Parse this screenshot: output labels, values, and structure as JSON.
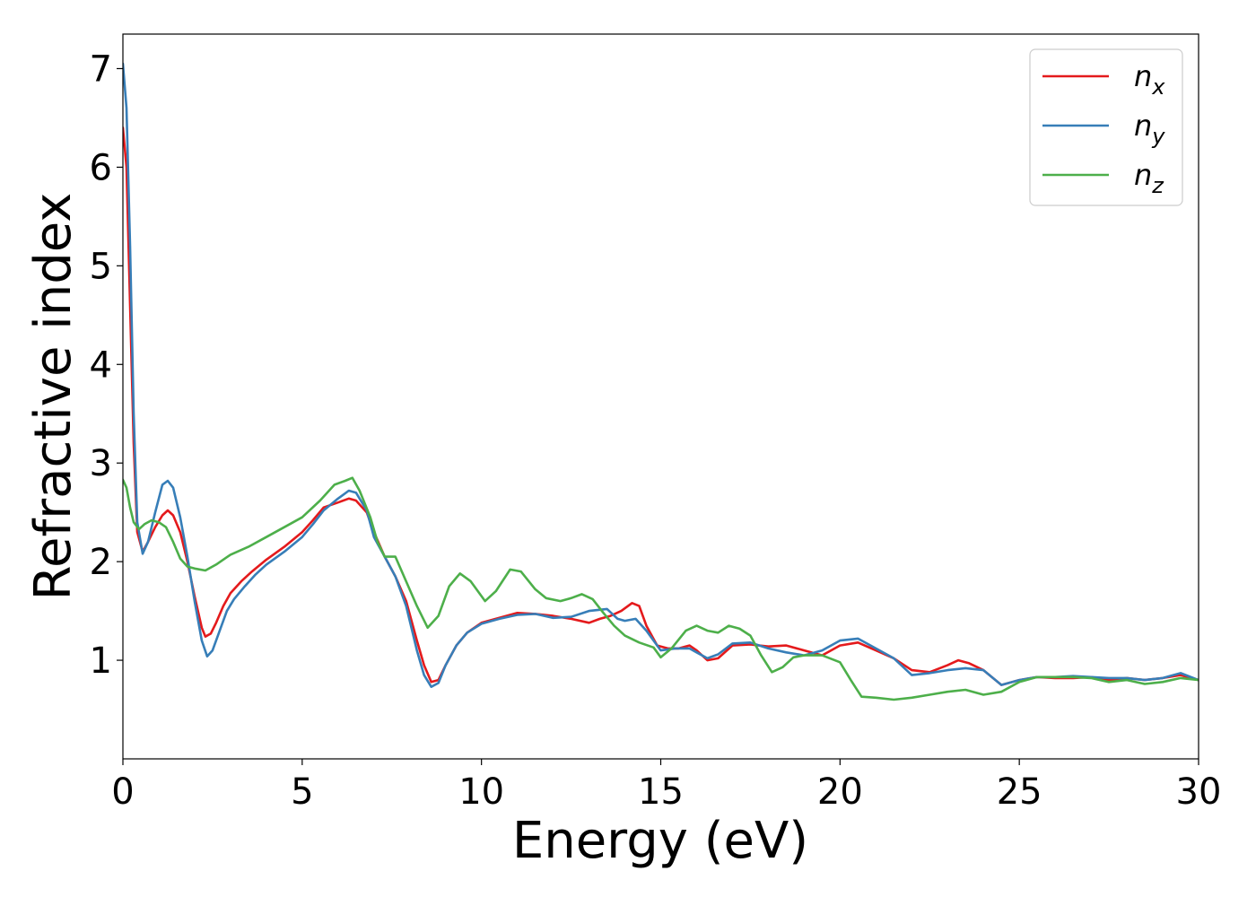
{
  "chart_data": {
    "type": "line",
    "title": "",
    "xlabel": "Energy (eV)",
    "ylabel": "Refractive index",
    "xlim": [
      0,
      30
    ],
    "ylim": [
      0,
      7.35
    ],
    "xticks": [
      0,
      5,
      10,
      15,
      20,
      25,
      30
    ],
    "yticks": [
      1,
      2,
      3,
      4,
      5,
      6,
      7
    ],
    "grid": false,
    "legend_position": "top-right",
    "series": [
      {
        "name": "n",
        "subscript": "x",
        "color": "#e41a1c",
        "points": [
          [
            0,
            6.4
          ],
          [
            0.1,
            6.0
          ],
          [
            0.2,
            4.6
          ],
          [
            0.3,
            3.2
          ],
          [
            0.4,
            2.3
          ],
          [
            0.55,
            2.1
          ],
          [
            0.7,
            2.2
          ],
          [
            0.9,
            2.35
          ],
          [
            1.1,
            2.47
          ],
          [
            1.25,
            2.52
          ],
          [
            1.4,
            2.47
          ],
          [
            1.6,
            2.3
          ],
          [
            1.8,
            2.0
          ],
          [
            2.0,
            1.65
          ],
          [
            2.2,
            1.33
          ],
          [
            2.3,
            1.24
          ],
          [
            2.45,
            1.27
          ],
          [
            2.6,
            1.38
          ],
          [
            2.8,
            1.55
          ],
          [
            3.0,
            1.68
          ],
          [
            3.3,
            1.8
          ],
          [
            3.6,
            1.9
          ],
          [
            4.0,
            2.02
          ],
          [
            4.5,
            2.15
          ],
          [
            5.0,
            2.3
          ],
          [
            5.3,
            2.42
          ],
          [
            5.6,
            2.55
          ],
          [
            6.0,
            2.6
          ],
          [
            6.3,
            2.64
          ],
          [
            6.5,
            2.62
          ],
          [
            6.8,
            2.5
          ],
          [
            7.0,
            2.3
          ],
          [
            7.3,
            2.05
          ],
          [
            7.6,
            1.85
          ],
          [
            7.9,
            1.6
          ],
          [
            8.2,
            1.2
          ],
          [
            8.4,
            0.95
          ],
          [
            8.6,
            0.78
          ],
          [
            8.8,
            0.8
          ],
          [
            9.0,
            0.95
          ],
          [
            9.3,
            1.15
          ],
          [
            9.6,
            1.28
          ],
          [
            10.0,
            1.38
          ],
          [
            10.5,
            1.43
          ],
          [
            11.0,
            1.48
          ],
          [
            11.5,
            1.47
          ],
          [
            12.0,
            1.45
          ],
          [
            12.5,
            1.42
          ],
          [
            13.0,
            1.38
          ],
          [
            13.3,
            1.42
          ],
          [
            13.6,
            1.45
          ],
          [
            13.9,
            1.5
          ],
          [
            14.2,
            1.58
          ],
          [
            14.4,
            1.55
          ],
          [
            14.6,
            1.35
          ],
          [
            14.9,
            1.15
          ],
          [
            15.2,
            1.12
          ],
          [
            15.5,
            1.12
          ],
          [
            15.8,
            1.15
          ],
          [
            16.0,
            1.1
          ],
          [
            16.3,
            1.0
          ],
          [
            16.6,
            1.02
          ],
          [
            17.0,
            1.15
          ],
          [
            17.5,
            1.16
          ],
          [
            18.0,
            1.14
          ],
          [
            18.5,
            1.15
          ],
          [
            19.0,
            1.1
          ],
          [
            19.5,
            1.05
          ],
          [
            20.0,
            1.15
          ],
          [
            20.5,
            1.18
          ],
          [
            21.0,
            1.1
          ],
          [
            21.5,
            1.02
          ],
          [
            22.0,
            0.9
          ],
          [
            22.5,
            0.88
          ],
          [
            23.0,
            0.95
          ],
          [
            23.3,
            1.0
          ],
          [
            23.6,
            0.97
          ],
          [
            24.0,
            0.9
          ],
          [
            24.5,
            0.75
          ],
          [
            25.0,
            0.8
          ],
          [
            25.5,
            0.83
          ],
          [
            26.0,
            0.82
          ],
          [
            26.5,
            0.82
          ],
          [
            27.0,
            0.83
          ],
          [
            27.5,
            0.8
          ],
          [
            28.0,
            0.82
          ],
          [
            28.5,
            0.8
          ],
          [
            29.0,
            0.82
          ],
          [
            29.5,
            0.85
          ],
          [
            30.0,
            0.8
          ]
        ]
      },
      {
        "name": "n",
        "subscript": "y",
        "color": "#377eb8",
        "points": [
          [
            0,
            7.05
          ],
          [
            0.1,
            6.6
          ],
          [
            0.2,
            5.2
          ],
          [
            0.3,
            3.5
          ],
          [
            0.4,
            2.4
          ],
          [
            0.55,
            2.08
          ],
          [
            0.7,
            2.2
          ],
          [
            0.9,
            2.5
          ],
          [
            1.1,
            2.78
          ],
          [
            1.25,
            2.82
          ],
          [
            1.4,
            2.75
          ],
          [
            1.6,
            2.45
          ],
          [
            1.8,
            2.05
          ],
          [
            2.0,
            1.6
          ],
          [
            2.2,
            1.2
          ],
          [
            2.35,
            1.04
          ],
          [
            2.5,
            1.1
          ],
          [
            2.7,
            1.3
          ],
          [
            2.9,
            1.5
          ],
          [
            3.1,
            1.62
          ],
          [
            3.4,
            1.75
          ],
          [
            3.7,
            1.87
          ],
          [
            4.0,
            1.97
          ],
          [
            4.5,
            2.1
          ],
          [
            5.0,
            2.25
          ],
          [
            5.3,
            2.38
          ],
          [
            5.6,
            2.52
          ],
          [
            6.0,
            2.64
          ],
          [
            6.3,
            2.72
          ],
          [
            6.5,
            2.7
          ],
          [
            6.8,
            2.52
          ],
          [
            7.0,
            2.25
          ],
          [
            7.3,
            2.05
          ],
          [
            7.6,
            1.85
          ],
          [
            7.9,
            1.55
          ],
          [
            8.2,
            1.1
          ],
          [
            8.4,
            0.85
          ],
          [
            8.6,
            0.73
          ],
          [
            8.8,
            0.77
          ],
          [
            9.0,
            0.95
          ],
          [
            9.3,
            1.15
          ],
          [
            9.6,
            1.28
          ],
          [
            10.0,
            1.37
          ],
          [
            10.5,
            1.42
          ],
          [
            11.0,
            1.46
          ],
          [
            11.5,
            1.47
          ],
          [
            12.0,
            1.43
          ],
          [
            12.5,
            1.44
          ],
          [
            13.0,
            1.5
          ],
          [
            13.5,
            1.52
          ],
          [
            13.8,
            1.42
          ],
          [
            14.0,
            1.4
          ],
          [
            14.3,
            1.42
          ],
          [
            14.6,
            1.3
          ],
          [
            15.0,
            1.1
          ],
          [
            15.4,
            1.12
          ],
          [
            15.8,
            1.12
          ],
          [
            16.0,
            1.08
          ],
          [
            16.3,
            1.02
          ],
          [
            16.6,
            1.06
          ],
          [
            17.0,
            1.17
          ],
          [
            17.5,
            1.18
          ],
          [
            18.0,
            1.12
          ],
          [
            18.5,
            1.08
          ],
          [
            19.0,
            1.05
          ],
          [
            19.5,
            1.1
          ],
          [
            20.0,
            1.2
          ],
          [
            20.5,
            1.22
          ],
          [
            21.0,
            1.12
          ],
          [
            21.5,
            1.02
          ],
          [
            22.0,
            0.85
          ],
          [
            22.5,
            0.87
          ],
          [
            23.0,
            0.9
          ],
          [
            23.5,
            0.92
          ],
          [
            24.0,
            0.9
          ],
          [
            24.5,
            0.75
          ],
          [
            25.0,
            0.8
          ],
          [
            25.5,
            0.83
          ],
          [
            26.0,
            0.83
          ],
          [
            26.5,
            0.84
          ],
          [
            27.0,
            0.83
          ],
          [
            27.5,
            0.82
          ],
          [
            28.0,
            0.82
          ],
          [
            28.5,
            0.8
          ],
          [
            29.0,
            0.82
          ],
          [
            29.5,
            0.87
          ],
          [
            30.0,
            0.8
          ]
        ]
      },
      {
        "name": "n",
        "subscript": "z",
        "color": "#4daf4a",
        "points": [
          [
            0,
            2.83
          ],
          [
            0.1,
            2.75
          ],
          [
            0.2,
            2.55
          ],
          [
            0.3,
            2.4
          ],
          [
            0.45,
            2.33
          ],
          [
            0.6,
            2.38
          ],
          [
            0.8,
            2.42
          ],
          [
            1.0,
            2.4
          ],
          [
            1.2,
            2.35
          ],
          [
            1.4,
            2.2
          ],
          [
            1.6,
            2.03
          ],
          [
            1.8,
            1.95
          ],
          [
            2.0,
            1.93
          ],
          [
            2.3,
            1.91
          ],
          [
            2.6,
            1.97
          ],
          [
            3.0,
            2.07
          ],
          [
            3.5,
            2.15
          ],
          [
            4.0,
            2.25
          ],
          [
            4.5,
            2.35
          ],
          [
            5.0,
            2.45
          ],
          [
            5.5,
            2.62
          ],
          [
            5.9,
            2.78
          ],
          [
            6.2,
            2.82
          ],
          [
            6.4,
            2.85
          ],
          [
            6.6,
            2.72
          ],
          [
            6.9,
            2.45
          ],
          [
            7.1,
            2.2
          ],
          [
            7.3,
            2.05
          ],
          [
            7.6,
            2.05
          ],
          [
            7.9,
            1.8
          ],
          [
            8.2,
            1.55
          ],
          [
            8.5,
            1.33
          ],
          [
            8.8,
            1.45
          ],
          [
            9.1,
            1.75
          ],
          [
            9.4,
            1.88
          ],
          [
            9.7,
            1.8
          ],
          [
            10.1,
            1.6
          ],
          [
            10.4,
            1.7
          ],
          [
            10.8,
            1.92
          ],
          [
            11.1,
            1.9
          ],
          [
            11.5,
            1.72
          ],
          [
            11.8,
            1.63
          ],
          [
            12.2,
            1.6
          ],
          [
            12.5,
            1.63
          ],
          [
            12.8,
            1.67
          ],
          [
            13.1,
            1.62
          ],
          [
            13.4,
            1.48
          ],
          [
            13.7,
            1.35
          ],
          [
            14.0,
            1.25
          ],
          [
            14.4,
            1.18
          ],
          [
            14.8,
            1.13
          ],
          [
            15.0,
            1.03
          ],
          [
            15.3,
            1.12
          ],
          [
            15.7,
            1.3
          ],
          [
            16.0,
            1.35
          ],
          [
            16.3,
            1.3
          ],
          [
            16.6,
            1.28
          ],
          [
            16.9,
            1.35
          ],
          [
            17.2,
            1.32
          ],
          [
            17.5,
            1.25
          ],
          [
            17.8,
            1.05
          ],
          [
            18.1,
            0.88
          ],
          [
            18.4,
            0.93
          ],
          [
            18.7,
            1.03
          ],
          [
            19.0,
            1.05
          ],
          [
            19.5,
            1.05
          ],
          [
            20.0,
            0.98
          ],
          [
            20.3,
            0.8
          ],
          [
            20.6,
            0.63
          ],
          [
            21.0,
            0.62
          ],
          [
            21.5,
            0.6
          ],
          [
            22.0,
            0.62
          ],
          [
            22.5,
            0.65
          ],
          [
            23.0,
            0.68
          ],
          [
            23.5,
            0.7
          ],
          [
            24.0,
            0.65
          ],
          [
            24.5,
            0.68
          ],
          [
            25.0,
            0.78
          ],
          [
            25.5,
            0.83
          ],
          [
            26.0,
            0.83
          ],
          [
            26.5,
            0.83
          ],
          [
            27.0,
            0.82
          ],
          [
            27.5,
            0.78
          ],
          [
            28.0,
            0.8
          ],
          [
            28.5,
            0.76
          ],
          [
            29.0,
            0.78
          ],
          [
            29.5,
            0.82
          ],
          [
            30.0,
            0.8
          ]
        ]
      }
    ]
  }
}
